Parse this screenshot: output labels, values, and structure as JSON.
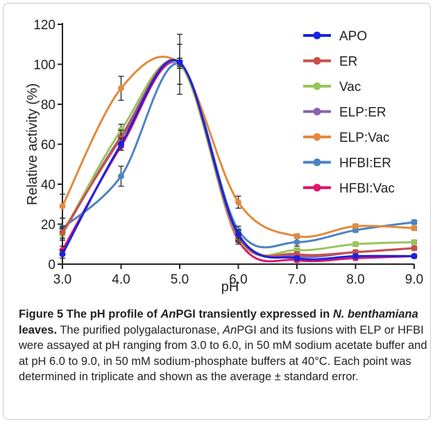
{
  "chart_data": {
    "type": "line",
    "xlabel": "pH",
    "ylabel": "Relative activity (%)",
    "x": [
      3.0,
      4.0,
      5.0,
      6.0,
      7.0,
      8.0,
      9.0
    ],
    "xticks": [
      "3.0",
      "4.0",
      "5.0",
      "6.0",
      "7.0",
      "8.0",
      "9.0"
    ],
    "yticks": [
      "0",
      "20",
      "40",
      "60",
      "80",
      "100",
      "120"
    ],
    "xlim": [
      3.0,
      9.0
    ],
    "ylim": [
      0,
      120
    ],
    "grid": false,
    "legend_position": "top-right",
    "series": [
      {
        "name": "APO",
        "color": "#1a22e0",
        "values": [
          5,
          60,
          101,
          15,
          3,
          4,
          4
        ],
        "errors": [
          2,
          3,
          2,
          2,
          1,
          1,
          1
        ]
      },
      {
        "name": "ER",
        "color": "#c8504a",
        "values": [
          16,
          63,
          101,
          14,
          5,
          6,
          8
        ],
        "errors": [
          3,
          4,
          2,
          2,
          1,
          1,
          1
        ]
      },
      {
        "name": "Vac",
        "color": "#9ac45a",
        "values": [
          15,
          67,
          100,
          13,
          7,
          10,
          11
        ],
        "errors": [
          3,
          3,
          2,
          2,
          1,
          1,
          1
        ]
      },
      {
        "name": "ELP:ER",
        "color": "#8a62ad",
        "values": [
          15,
          64,
          100,
          15,
          4,
          6,
          8
        ],
        "errors": [
          3,
          4,
          2,
          2,
          1,
          1,
          1
        ]
      },
      {
        "name": "ELP:Vac",
        "color": "#e38a3c",
        "values": [
          29,
          88,
          100,
          31,
          14,
          19,
          18
        ],
        "errors": [
          6,
          6,
          15,
          3,
          1,
          1,
          1
        ]
      },
      {
        "name": "HFBI:ER",
        "color": "#4c84c3",
        "values": [
          18,
          44,
          100,
          17,
          11,
          17,
          21
        ],
        "errors": [
          5,
          5,
          10,
          2,
          2,
          1,
          1
        ]
      },
      {
        "name": "HFBI:Vac",
        "color": "#e2156d",
        "values": [
          7,
          59,
          100,
          12,
          2,
          3,
          4
        ],
        "errors": [
          2,
          2,
          2,
          2,
          1,
          1,
          1
        ]
      }
    ]
  },
  "caption": {
    "label": "Figure 5",
    "title_pre": " The pH profile of ",
    "title_italic": "An",
    "title_mid": "PGI transiently expressed in ",
    "title_species": "N. benthamiana",
    "title_post": " leaves.",
    "body_1": " The purified polygalacturonase, ",
    "body_italic": "An",
    "body_2": "PGI and its fusions with ELP or HFBI were assayed at pH ranging from 3.0 to 6.0, in 50 mM sodium acetate buffer and at pH 6.0 to 9.0, in 50 mM sodium-phosphate buffers at 40°C. Each point was determined in triplicate and shown as the average ± standard error."
  }
}
